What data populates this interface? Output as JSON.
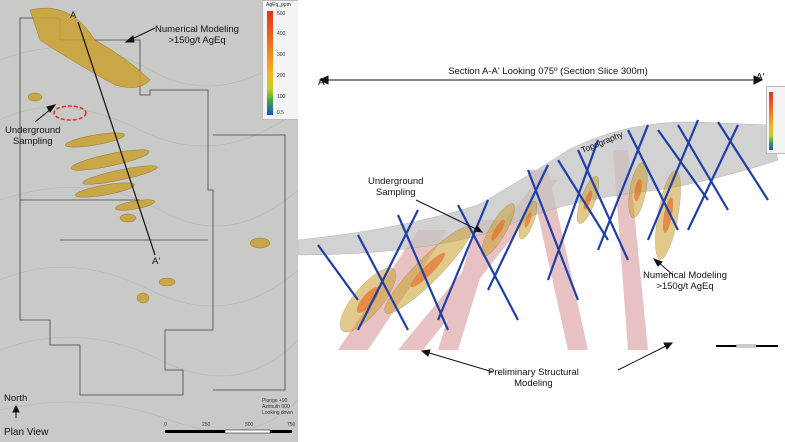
{
  "plan_view": {
    "title": "Plan View",
    "north_label": "North",
    "section_start": "A",
    "section_end": "A'",
    "callout_model": "Numerical Modeling\n>150g/t AgEq",
    "callout_sampling": "Underground\nSampling",
    "view_info": [
      "Plunge +90",
      "Azimuth 000",
      "Looking down"
    ],
    "scale_ticks": [
      "0",
      "250",
      "500",
      "750"
    ],
    "legend": {
      "title": "AgEq_ppm",
      "ticks": [
        "500",
        "400",
        "300",
        "200",
        "100",
        "0.5"
      ]
    }
  },
  "section_view": {
    "title": "Section A-A' Looking 075º (Section Slice 300m)",
    "end_left": "A",
    "end_right": "A'",
    "topography_label": "Topography",
    "callout_sampling": "Underground\nSampling",
    "callout_model": "Numerical Modeling\n>150g/t AgEq",
    "callout_structural": "Preliminary Structural\nModeling"
  },
  "colors": {
    "ore_body": "#c9a030",
    "drill_hole": "#1f3fa8",
    "structure": "#d99a9a",
    "sampling_marker": "#e03020",
    "topography": "#b0b0b0"
  }
}
